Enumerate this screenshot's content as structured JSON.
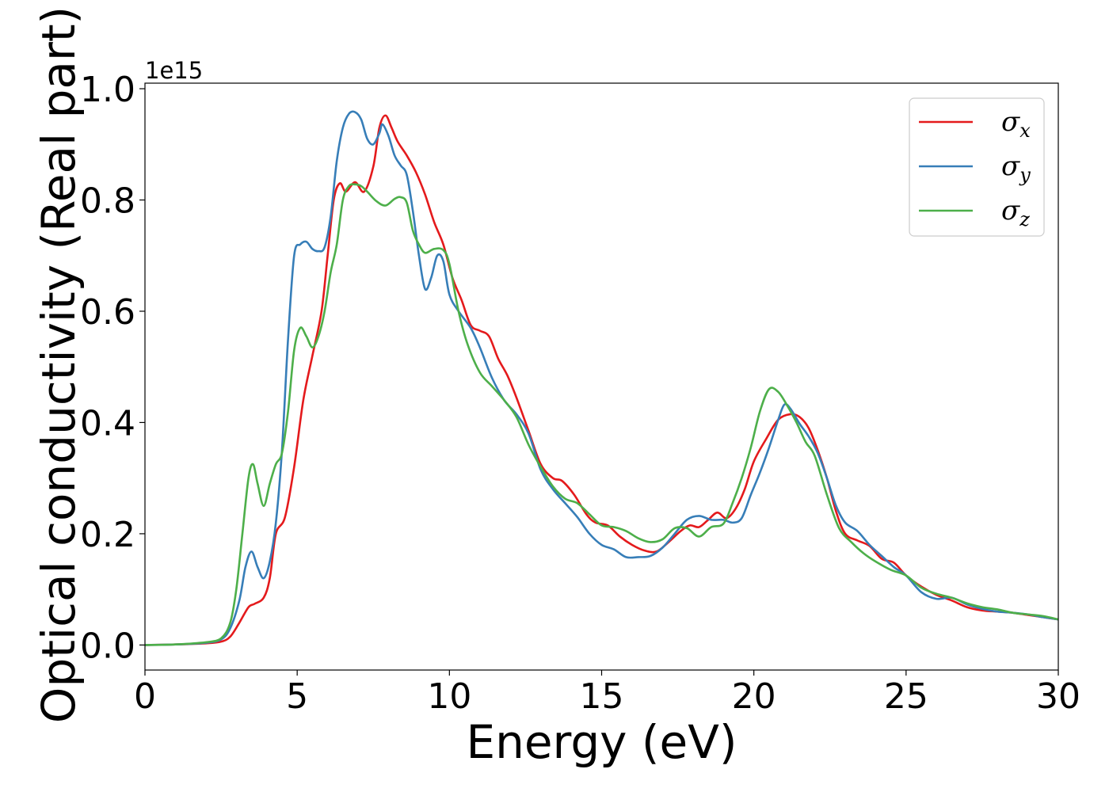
{
  "chart_data": {
    "type": "line",
    "xlabel": "Energy (eV)",
    "ylabel": "Optical conductivity (Real part)",
    "y_offset_label": "1e15",
    "xlim": [
      0,
      30
    ],
    "ylim": [
      -0.045,
      1.01
    ],
    "x_ticks": [
      0,
      5,
      10,
      15,
      20,
      25,
      30
    ],
    "x_tick_labels": [
      "0",
      "5",
      "10",
      "15",
      "20",
      "25",
      "30"
    ],
    "y_ticks": [
      0.0,
      0.2,
      0.4,
      0.6,
      0.8,
      1.0
    ],
    "y_tick_labels": [
      "0.0",
      "0.2",
      "0.4",
      "0.6",
      "0.8",
      "1.0"
    ],
    "grid": false,
    "legend_position": "top-right",
    "series": [
      {
        "name": "σx",
        "symbol": "σ",
        "subscript": "x",
        "color": "#e41a1c",
        "x": [
          0,
          1,
          2,
          2.5,
          2.8,
          3.1,
          3.4,
          3.6,
          3.9,
          4.1,
          4.3,
          4.6,
          4.9,
          5.2,
          5.5,
          5.8,
          6.0,
          6.2,
          6.4,
          6.6,
          6.9,
          7.2,
          7.5,
          7.7,
          7.9,
          8.1,
          8.3,
          8.6,
          8.9,
          9.2,
          9.5,
          9.8,
          10.1,
          10.4,
          10.7,
          11.0,
          11.3,
          11.6,
          11.9,
          12.2,
          12.6,
          13.0,
          13.4,
          13.7,
          14.1,
          14.5,
          14.8,
          15.2,
          15.6,
          16.0,
          16.4,
          16.8,
          17.2,
          17.6,
          17.9,
          18.2,
          18.5,
          18.8,
          19.1,
          19.4,
          19.7,
          20.0,
          20.4,
          20.8,
          21.2,
          21.5,
          21.8,
          22.1,
          22.4,
          22.7,
          23.0,
          23.4,
          23.8,
          24.2,
          24.6,
          25.0,
          25.5,
          26.0,
          26.5,
          27.0,
          27.5,
          28.0,
          28.5,
          29.0,
          29.5,
          30.0
        ],
        "y": [
          0.0,
          0.001,
          0.003,
          0.006,
          0.015,
          0.04,
          0.068,
          0.074,
          0.085,
          0.12,
          0.2,
          0.23,
          0.32,
          0.44,
          0.52,
          0.6,
          0.7,
          0.8,
          0.83,
          0.815,
          0.832,
          0.815,
          0.86,
          0.93,
          0.952,
          0.93,
          0.905,
          0.88,
          0.85,
          0.81,
          0.76,
          0.72,
          0.66,
          0.62,
          0.575,
          0.565,
          0.555,
          0.515,
          0.485,
          0.445,
          0.385,
          0.325,
          0.3,
          0.295,
          0.27,
          0.235,
          0.22,
          0.215,
          0.195,
          0.18,
          0.17,
          0.168,
          0.185,
          0.205,
          0.215,
          0.212,
          0.225,
          0.238,
          0.228,
          0.245,
          0.28,
          0.33,
          0.37,
          0.405,
          0.415,
          0.41,
          0.39,
          0.35,
          0.3,
          0.24,
          0.2,
          0.188,
          0.178,
          0.155,
          0.148,
          0.125,
          0.105,
          0.09,
          0.08,
          0.068,
          0.062,
          0.06,
          0.058,
          0.054,
          0.05,
          0.046
        ]
      },
      {
        "name": "σy",
        "symbol": "σ",
        "subscript": "y",
        "color": "#377eb8",
        "x": [
          0,
          1,
          2,
          2.5,
          2.8,
          3.1,
          3.3,
          3.5,
          3.7,
          3.9,
          4.1,
          4.3,
          4.5,
          4.7,
          4.9,
          5.1,
          5.3,
          5.5,
          5.7,
          5.9,
          6.1,
          6.3,
          6.5,
          6.7,
          6.9,
          7.1,
          7.3,
          7.5,
          7.7,
          7.8,
          8.0,
          8.2,
          8.4,
          8.6,
          8.8,
          9.0,
          9.2,
          9.4,
          9.6,
          9.8,
          10.0,
          10.3,
          10.7,
          11.0,
          11.4,
          11.8,
          12.2,
          12.6,
          13.0,
          13.4,
          13.8,
          14.2,
          14.6,
          15.0,
          15.4,
          15.8,
          16.2,
          16.6,
          17.0,
          17.4,
          17.8,
          18.2,
          18.6,
          19.0,
          19.3,
          19.6,
          19.9,
          20.2,
          20.5,
          20.8,
          21.0,
          21.2,
          21.5,
          21.8,
          22.1,
          22.4,
          22.7,
          23.0,
          23.4,
          23.8,
          24.2,
          24.6,
          25.0,
          25.5,
          26.0,
          26.5,
          27.0,
          27.5,
          28.0,
          28.5,
          29.0,
          29.5,
          30.0
        ],
        "y": [
          0.0,
          0.001,
          0.004,
          0.01,
          0.03,
          0.08,
          0.14,
          0.168,
          0.14,
          0.12,
          0.15,
          0.22,
          0.35,
          0.55,
          0.7,
          0.72,
          0.725,
          0.712,
          0.708,
          0.715,
          0.77,
          0.87,
          0.93,
          0.955,
          0.958,
          0.945,
          0.91,
          0.9,
          0.92,
          0.936,
          0.915,
          0.88,
          0.862,
          0.845,
          0.78,
          0.7,
          0.64,
          0.66,
          0.7,
          0.69,
          0.63,
          0.6,
          0.57,
          0.535,
          0.48,
          0.44,
          0.415,
          0.38,
          0.315,
          0.28,
          0.255,
          0.23,
          0.2,
          0.18,
          0.172,
          0.158,
          0.158,
          0.16,
          0.175,
          0.2,
          0.225,
          0.232,
          0.225,
          0.225,
          0.22,
          0.228,
          0.27,
          0.31,
          0.355,
          0.405,
          0.432,
          0.425,
          0.398,
          0.375,
          0.345,
          0.3,
          0.25,
          0.22,
          0.205,
          0.18,
          0.16,
          0.14,
          0.125,
          0.095,
          0.083,
          0.085,
          0.073,
          0.065,
          0.06,
          0.058,
          0.055,
          0.05,
          0.046
        ]
      },
      {
        "name": "σz",
        "symbol": "σ",
        "subscript": "z",
        "color": "#4daf4a",
        "x": [
          0,
          1,
          2,
          2.5,
          2.8,
          3.0,
          3.2,
          3.4,
          3.55,
          3.7,
          3.9,
          4.1,
          4.3,
          4.5,
          4.7,
          4.9,
          5.1,
          5.3,
          5.5,
          5.7,
          5.9,
          6.1,
          6.3,
          6.5,
          6.7,
          6.9,
          7.1,
          7.3,
          7.6,
          7.9,
          8.2,
          8.4,
          8.6,
          8.8,
          9.0,
          9.2,
          9.5,
          9.8,
          10.0,
          10.3,
          10.6,
          11.0,
          11.4,
          11.8,
          12.2,
          12.6,
          13.0,
          13.4,
          13.8,
          14.2,
          14.6,
          15.0,
          15.4,
          15.8,
          16.2,
          16.6,
          17.0,
          17.4,
          17.8,
          18.2,
          18.6,
          19.0,
          19.3,
          19.6,
          19.9,
          20.2,
          20.5,
          20.8,
          21.1,
          21.4,
          21.7,
          22.0,
          22.4,
          22.8,
          23.2,
          23.6,
          24.0,
          24.5,
          25.0,
          25.5,
          26.0,
          26.5,
          27.0,
          27.5,
          28.0,
          28.5,
          29.0,
          29.5,
          30.0
        ],
        "y": [
          0.0,
          0.001,
          0.005,
          0.012,
          0.04,
          0.1,
          0.2,
          0.3,
          0.325,
          0.29,
          0.25,
          0.29,
          0.325,
          0.345,
          0.42,
          0.53,
          0.57,
          0.555,
          0.535,
          0.555,
          0.6,
          0.67,
          0.72,
          0.8,
          0.825,
          0.828,
          0.825,
          0.815,
          0.798,
          0.79,
          0.802,
          0.805,
          0.795,
          0.745,
          0.72,
          0.705,
          0.712,
          0.71,
          0.685,
          0.6,
          0.54,
          0.49,
          0.465,
          0.44,
          0.41,
          0.36,
          0.32,
          0.285,
          0.263,
          0.255,
          0.235,
          0.215,
          0.212,
          0.205,
          0.192,
          0.185,
          0.19,
          0.21,
          0.21,
          0.195,
          0.212,
          0.218,
          0.255,
          0.3,
          0.355,
          0.42,
          0.46,
          0.455,
          0.43,
          0.4,
          0.365,
          0.34,
          0.27,
          0.21,
          0.185,
          0.165,
          0.15,
          0.135,
          0.125,
          0.103,
          0.092,
          0.085,
          0.075,
          0.068,
          0.064,
          0.058,
          0.055,
          0.052,
          0.046
        ]
      }
    ]
  }
}
